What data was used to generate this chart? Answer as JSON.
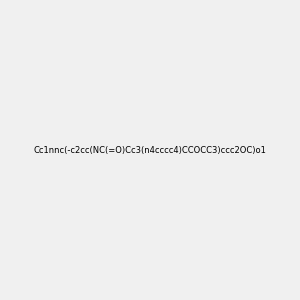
{
  "smiles": "Cc1nnc(-c2cc(NC(=O)Cc3(n4cccc4)CCOCC3)ccc2OC)o1",
  "title": "",
  "img_size": [
    300,
    300
  ],
  "background_color": "#f0f0f0",
  "atom_colors": {
    "N": "#0000ff",
    "O": "#ff0000",
    "default": "#000000"
  }
}
